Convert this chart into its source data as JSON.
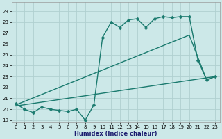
{
  "xlabel": "Humidex (Indice chaleur)",
  "bg_color": "#cce8e8",
  "grid_color": "#b0d0d0",
  "line_color": "#1a7a6e",
  "xlim": [
    -0.5,
    23.5
  ],
  "ylim": [
    18.8,
    29.8
  ],
  "yticks": [
    19,
    20,
    21,
    22,
    23,
    24,
    25,
    26,
    27,
    28,
    29
  ],
  "xticks": [
    0,
    1,
    2,
    3,
    4,
    5,
    6,
    7,
    8,
    9,
    10,
    11,
    12,
    13,
    14,
    15,
    16,
    17,
    18,
    19,
    20,
    21,
    22,
    23
  ],
  "line1_x": [
    0,
    1,
    2,
    3,
    4,
    5,
    6,
    7,
    8,
    9,
    10,
    11,
    12,
    13,
    14,
    15,
    16,
    17,
    18,
    19,
    20,
    21,
    22,
    23
  ],
  "line1_y": [
    20.5,
    20.0,
    19.7,
    20.2,
    20.0,
    19.9,
    19.8,
    20.0,
    19.0,
    20.4,
    26.6,
    28.0,
    27.5,
    28.2,
    28.3,
    27.5,
    28.3,
    28.5,
    28.4,
    28.5,
    28.5,
    24.5,
    22.7,
    23.0
  ],
  "line2_x": [
    0,
    20,
    22,
    23
  ],
  "line2_y": [
    20.4,
    26.8,
    22.7,
    23.0
  ],
  "line3_x": [
    0,
    23
  ],
  "line3_y": [
    20.3,
    23.0
  ],
  "marker_size": 2.5,
  "lw": 1.0
}
